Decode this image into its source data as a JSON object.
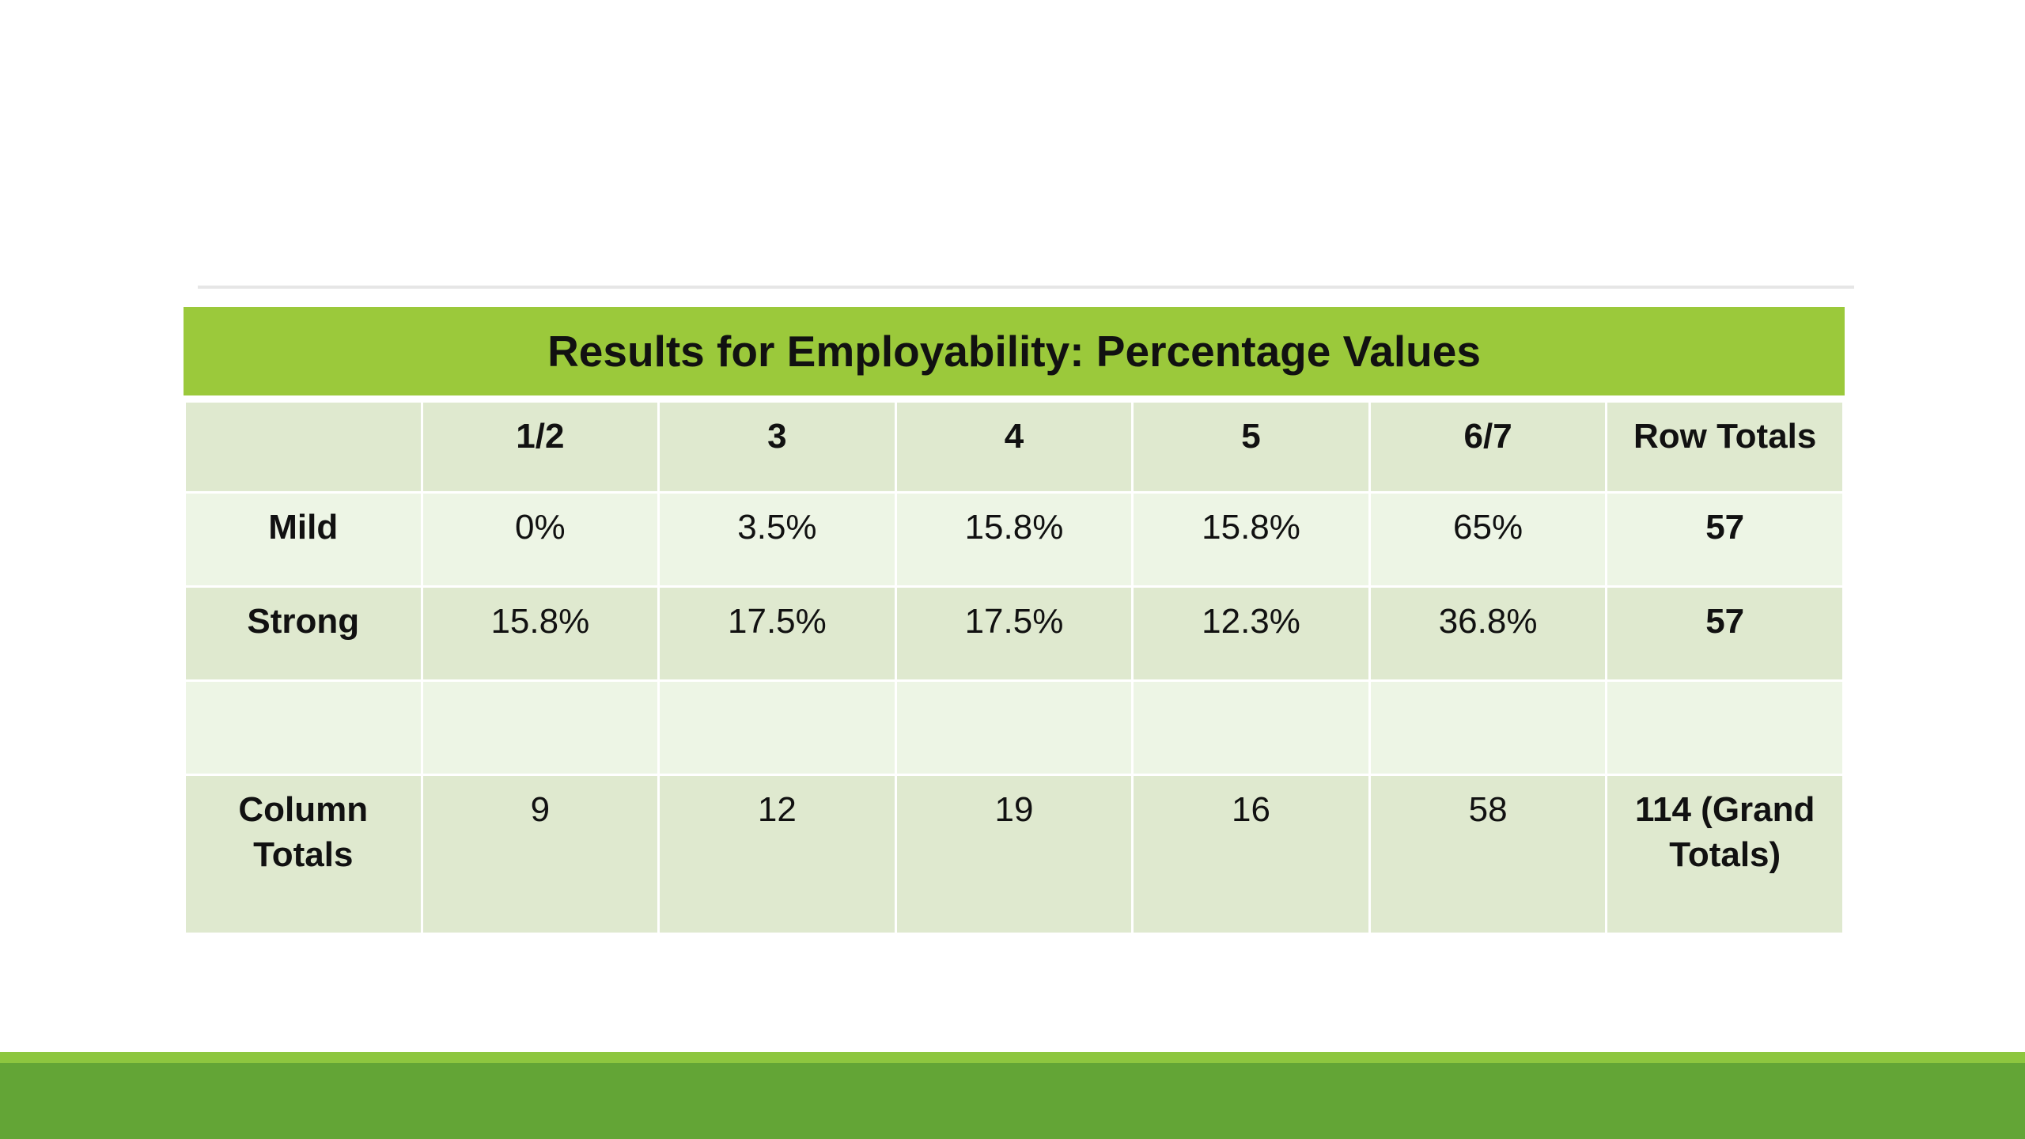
{
  "table": {
    "title": "Results for Employability: Percentage Values",
    "headers": [
      "",
      "1/2",
      "3",
      "4",
      "5",
      "6/7",
      "Row Totals"
    ],
    "rows": [
      {
        "label": "Mild",
        "values": [
          "0%",
          "3.5%",
          "15.8%",
          "15.8%",
          "65%"
        ],
        "total": "57"
      },
      {
        "label": "Strong",
        "values": [
          "15.8%",
          "17.5%",
          "17.5%",
          "12.3%",
          "36.8%"
        ],
        "total": "57"
      }
    ],
    "empty_row": [
      "",
      "",
      "",
      "",
      "",
      "",
      ""
    ],
    "totals_row": {
      "label": "Column Totals",
      "values": [
        "9",
        "12",
        "19",
        "16",
        "58"
      ],
      "grand_total": "114 (Grand Totals)"
    }
  },
  "colors": {
    "title_bar": "#9bc93b",
    "row_dark": "#dfe9cf",
    "row_light": "#edf5e5",
    "footer_light": "#8dc63f",
    "footer_dark": "#63a536",
    "top_rule": "#e6e6e6"
  }
}
